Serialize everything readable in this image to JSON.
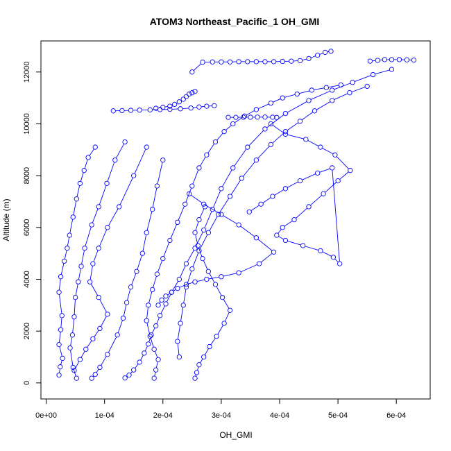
{
  "chart_data": {
    "type": "scatter",
    "title": "ATOM3 Northeast_Pacific_1 OH_GMI",
    "xlabel": "OH_GMI",
    "ylabel": "Altitude (m)",
    "xlim": [
      -9e-06,
      0.000658
    ],
    "ylim": [
      -620,
      13200
    ],
    "x_ticks": [
      0,
      0.0001,
      0.0002,
      0.0003,
      0.0004,
      0.0005,
      0.0006
    ],
    "x_tick_labels": [
      "0e+00",
      "1e-04",
      "2e-04",
      "3e-04",
      "4e-04",
      "5e-04",
      "6e-04"
    ],
    "y_ticks": [
      0,
      2000,
      4000,
      6000,
      8000,
      10000,
      12000
    ],
    "y_tick_labels": [
      "0",
      "2000",
      "4000",
      "6000",
      "8000",
      "10000",
      "12000"
    ],
    "marker": "open-circle",
    "connected": true,
    "series_color": "#0000ff",
    "grid": false,
    "legend": "none",
    "profiles": [
      {
        "x": [
          2.2e-05,
          2.4e-05,
          2.8e-05,
          2.2e-05,
          2.5e-05,
          2.7e-05,
          2.2e-05,
          2.5e-05,
          3.1e-05,
          3.6e-05,
          4e-05,
          4.6e-05,
          5.2e-05,
          5.8e-05,
          6.5e-05,
          7.2e-05,
          8.4e-05
        ],
        "y": [
          300,
          620,
          950,
          1480,
          2050,
          2600,
          3500,
          4100,
          4700,
          5200,
          5700,
          6400,
          7100,
          7700,
          8200,
          8700,
          9100
        ]
      },
      {
        "x": [
          5.2e-05,
          4.6e-05,
          4.1e-05,
          4.5e-05,
          4.8e-05,
          5e-05,
          5.5e-05,
          6e-05,
          6.6e-05,
          7.8e-05,
          9e-05,
          0.000104,
          0.000118,
          0.000135
        ],
        "y": [
          180,
          600,
          1350,
          1850,
          2550,
          3300,
          3900,
          4500,
          5200,
          6100,
          6800,
          7700,
          8600,
          9300
        ]
      },
      {
        "x": [
          4.8e-05,
          5.8e-05,
          6.8e-05,
          8e-05,
          9.2e-05,
          0.000105,
          9e-05,
          7.5e-05,
          8e-05,
          9e-05,
          0.000105,
          0.000125,
          0.00015,
          0.000172
        ],
        "y": [
          480,
          900,
          1300,
          1700,
          2100,
          2650,
          3300,
          3900,
          4600,
          5200,
          6000,
          6800,
          8000,
          9100
        ]
      },
      {
        "x": [
          7.8e-05,
          8.4e-05,
          9.2e-05,
          0.000105,
          0.000122,
          0.000132,
          0.000138,
          0.000145,
          0.000155,
          0.000165,
          0.000172,
          0.000182,
          0.00019,
          0.0002
        ],
        "y": [
          180,
          330,
          600,
          1100,
          1850,
          2500,
          3100,
          3700,
          4300,
          5000,
          5800,
          6700,
          7600,
          8600
        ]
      },
      {
        "x": [
          0.000135,
          0.000142,
          0.00015,
          0.00016,
          0.000168,
          0.000175,
          0.00018,
          0.000188,
          0.000195,
          0.000205,
          0.000215,
          0.000228,
          0.00024,
          0.000255,
          0.00027,
          0.000285,
          0.0003,
          0.00032,
          0.000345,
          0.000375,
          0.00041,
          0.00045,
          0.00049,
          0.000525,
          0.00056,
          0.000592
        ],
        "y": [
          190,
          300,
          500,
          800,
          1150,
          1500,
          1850,
          2200,
          2600,
          3050,
          3500,
          4000,
          4600,
          5200,
          5900,
          6700,
          7500,
          8300,
          9100,
          9800,
          10400,
          10900,
          11300,
          11600,
          11900,
          12100
        ]
      },
      {
        "x": [
          0.000185,
          0.000188,
          0.000192,
          0.000185,
          0.000178,
          0.000172,
          0.000175,
          0.000182,
          0.00019,
          0.0002,
          0.000212,
          0.000225,
          0.000238,
          0.00025,
          0.000262,
          0.000275,
          0.00029,
          0.000305,
          0.00032,
          0.00034,
          0.00036,
          0.000385,
          0.000405,
          0.00043,
          0.000455,
          0.00048,
          0.000505
        ],
        "y": [
          180,
          500,
          900,
          1300,
          1800,
          2400,
          3000,
          3600,
          4200,
          4800,
          5500,
          6200,
          6900,
          7600,
          8300,
          8800,
          9300,
          9700,
          10000,
          10300,
          10550,
          10800,
          11000,
          11150,
          11300,
          11400,
          11500
        ]
      },
      {
        "x": [
          0.000228,
          0.000225,
          0.00023,
          0.000235,
          0.00024,
          0.00025,
          0.000262,
          0.000278,
          0.000295,
          0.000315,
          0.000335,
          0.00036,
          0.000385,
          0.00041,
          0.000435,
          0.00046,
          0.00049,
          0.00052,
          0.00055
        ],
        "y": [
          1000,
          1600,
          2300,
          3000,
          3700,
          4400,
          5100,
          5800,
          6500,
          7200,
          7900,
          8600,
          9200,
          9700,
          10100,
          10500,
          10900,
          11200,
          11450
        ]
      },
      {
        "x": [
          0.000255,
          0.000258,
          0.000262,
          0.00027,
          0.00028,
          0.000292,
          0.000305,
          0.000315,
          0.000302,
          0.00029,
          0.000278,
          0.000268,
          0.00026,
          0.000255,
          0.000262,
          0.000272
        ],
        "y": [
          180,
          400,
          700,
          1000,
          1400,
          1800,
          2300,
          2800,
          3300,
          3800,
          4300,
          4800,
          5300,
          5800,
          6300,
          6800
        ]
      },
      {
        "x": [
          0.000192,
          0.000198,
          0.000205,
          0.000215,
          0.000225,
          0.00024,
          0.000255,
          0.000275,
          0.0003,
          0.00033,
          0.000365,
          0.00039,
          0.00036,
          0.00033,
          0.0003,
          0.00027,
          0.000245
        ],
        "y": [
          3000,
          3200,
          3350,
          3500,
          3650,
          3800,
          3900,
          4000,
          4100,
          4250,
          4600,
          5050,
          5600,
          6100,
          6500,
          6900,
          7300
        ]
      },
      {
        "x": [
          0.000348,
          0.000368,
          0.000388,
          0.00041,
          0.000435,
          0.000465,
          0.00049,
          0.000503,
          0.000492,
          0.00047,
          0.00044,
          0.00041,
          0.000395,
          0.000405,
          0.000425,
          0.00045,
          0.000475,
          0.0005,
          0.000521,
          0.000495,
          0.00047,
          0.000445,
          0.00041,
          0.000385
        ],
        "y": [
          6600,
          6900,
          7200,
          7500,
          7800,
          8100,
          8300,
          4600,
          4850,
          5100,
          5300,
          5500,
          5700,
          6000,
          6300,
          6800,
          7300,
          7800,
          8200,
          8800,
          9100,
          9400,
          9600,
          10000
        ]
      },
      {
        "x": [
          0.000115,
          0.00013,
          0.000145,
          0.00016,
          0.000178,
          0.000195,
          0.000212,
          0.00023,
          0.000248,
          0.000262,
          0.000275,
          0.000288
        ],
        "y": [
          10500,
          10510,
          10520,
          10530,
          10540,
          10550,
          10560,
          10580,
          10610,
          10650,
          10680,
          10700
        ]
      },
      {
        "x": [
          0.000188,
          0.0002,
          0.000212,
          0.00022,
          0.000228,
          0.000235,
          0.00024,
          0.000245,
          0.00025,
          0.000255
        ],
        "y": [
          10600,
          10640,
          10680,
          10750,
          10850,
          10950,
          11050,
          11150,
          11200,
          11250
        ]
      },
      {
        "x": [
          0.00025,
          0.000268,
          0.000285,
          0.0003,
          0.000315,
          0.00033,
          0.000345,
          0.00036,
          0.000375,
          0.00039,
          0.000405,
          0.00042,
          0.000435,
          0.00045,
          0.000465,
          0.000478,
          0.000488
        ],
        "y": [
          12000,
          12380,
          12390,
          12390,
          12390,
          12400,
          12400,
          12400,
          12400,
          12400,
          12410,
          12420,
          12440,
          12520,
          12650,
          12760,
          12800
        ]
      },
      {
        "x": [
          0.000312,
          0.000325,
          0.000338,
          0.00035,
          0.000362,
          0.000375,
          0.000388,
          0.000395
        ],
        "y": [
          10250,
          10250,
          10255,
          10255,
          10260,
          10260,
          10255,
          10245
        ]
      },
      {
        "x": [
          0.000555,
          0.000568,
          0.00058,
          0.000592,
          0.000605,
          0.000618,
          0.00063
        ],
        "y": [
          12420,
          12450,
          12480,
          12480,
          12480,
          12470,
          12460
        ]
      }
    ]
  }
}
